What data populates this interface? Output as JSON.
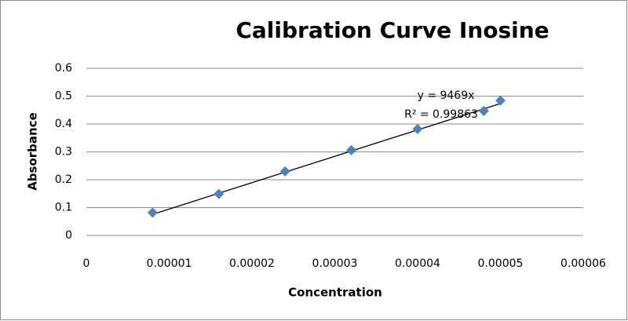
{
  "chart_data": {
    "type": "scatter",
    "title": "Calibration Curve Inosine",
    "x_label": "Concentration",
    "y_label": "Absorbance",
    "series": [
      {
        "color": "#4f81bd",
        "x": [
          8e-06,
          1.6e-05,
          2.4e-05,
          3.2e-05,
          4e-05,
          4.8e-05,
          5e-05
        ],
        "values": [
          0.082,
          0.149,
          0.23,
          0.306,
          0.382,
          0.447,
          0.484
        ]
      }
    ],
    "trendline": {
      "slope": 9469,
      "equation": "y = 9469x",
      "r_squared": "R² = 0.99863",
      "color": "#000000"
    },
    "xlim": [
      0,
      6e-05
    ],
    "xticks": [
      0,
      {
        "value": 1e-05,
        "label": "0.00001"
      },
      {
        "value": 2e-05,
        "label": "0.00002"
      },
      {
        "value": 3e-05,
        "label": "0.00003"
      },
      {
        "value": 4e-05,
        "label": "0.00004"
      },
      {
        "value": 5e-05,
        "label": "0.00005"
      },
      {
        "value": 6e-05,
        "label": "0.00006"
      }
    ],
    "ylim": [
      0,
      0.6
    ],
    "yticks": [
      0,
      0.1,
      0.2,
      0.3,
      0.4,
      0.5,
      0.6
    ],
    "grid": true
  }
}
